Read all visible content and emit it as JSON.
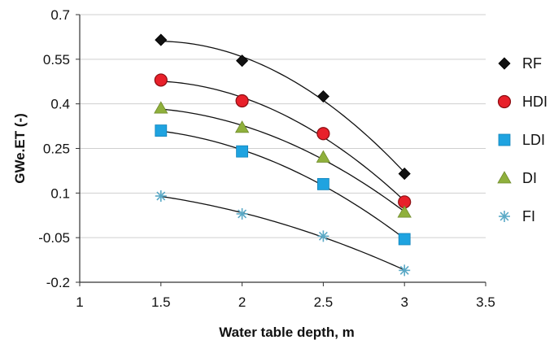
{
  "chart_data": {
    "type": "scatter",
    "title": "",
    "xlabel": "Water table depth, m",
    "ylabel": "GWe.ET (-)",
    "xlim": [
      1,
      3.5
    ],
    "ylim": [
      -0.2,
      0.7
    ],
    "x_ticks": [
      "1",
      "1.5",
      "2",
      "2.5",
      "3",
      "3.5"
    ],
    "y_ticks": [
      "0.7",
      "0.55",
      "0.4",
      "0.25",
      "0.1",
      "-0.05",
      "-0.2"
    ],
    "x_tick_values": [
      1,
      1.5,
      2,
      2.5,
      3,
      3.5
    ],
    "y_tick_values": [
      0.7,
      0.55,
      0.4,
      0.25,
      0.1,
      -0.05,
      -0.2
    ],
    "grid": "horizontal",
    "legend_position": "right",
    "x": [
      1.5,
      2,
      2.5,
      3
    ],
    "series": [
      {
        "name": "RF",
        "marker": "diamond",
        "color": "#111111",
        "values": [
          0.615,
          0.545,
          0.425,
          0.165
        ]
      },
      {
        "name": "HDI",
        "marker": "circle",
        "color": "#e8202a",
        "values": [
          0.48,
          0.41,
          0.3,
          0.07
        ]
      },
      {
        "name": "LDI",
        "marker": "square",
        "color": "#1fa3e0",
        "values": [
          0.31,
          0.24,
          0.13,
          -0.055
        ]
      },
      {
        "name": "DI",
        "marker": "triangle",
        "color": "#8fb03c",
        "values": [
          0.385,
          0.32,
          0.22,
          0.035
        ]
      },
      {
        "name": "FI",
        "marker": "asterisk",
        "color": "#5aa9c6",
        "values": [
          0.09,
          0.03,
          -0.045,
          -0.16
        ]
      }
    ]
  }
}
